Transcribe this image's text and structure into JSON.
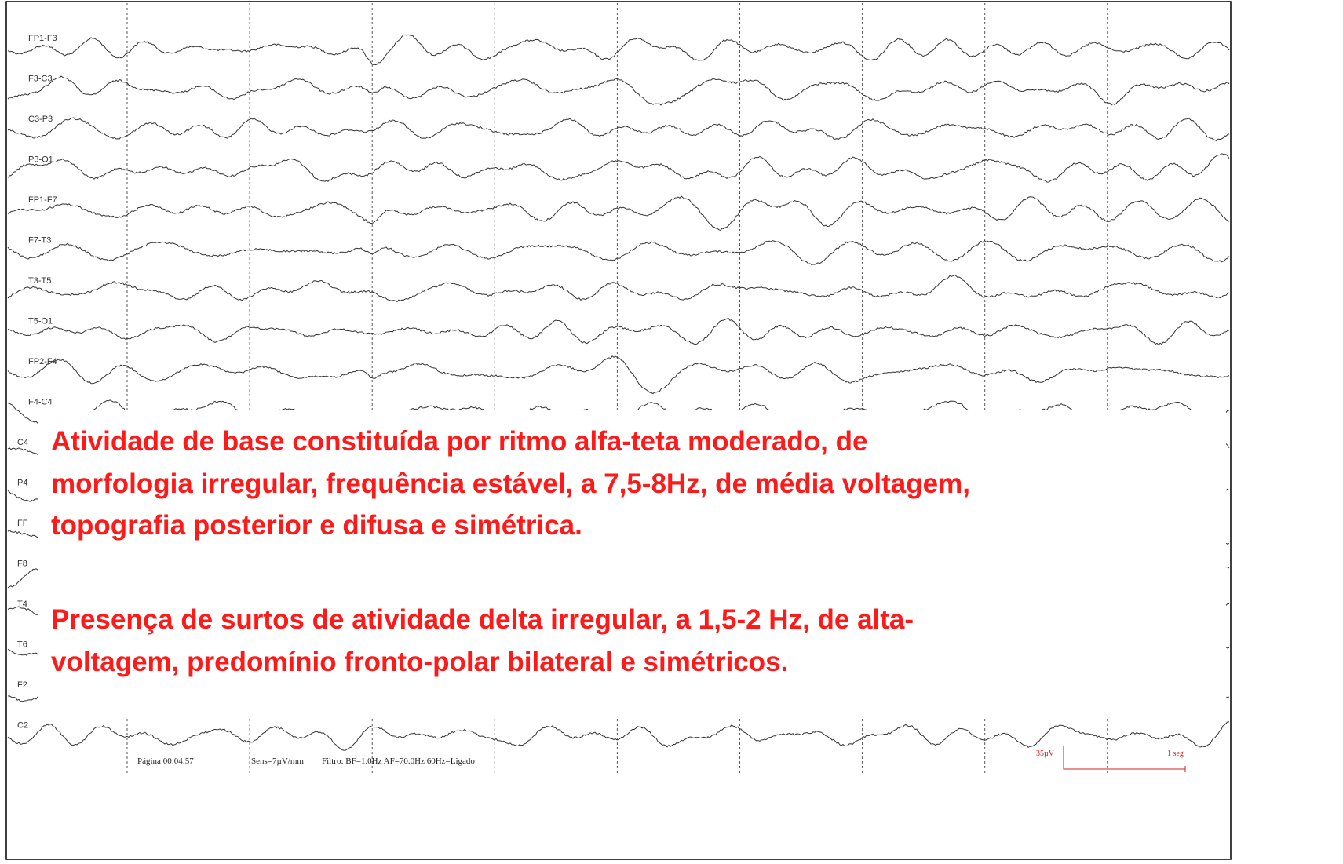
{
  "eeg": {
    "channels": [
      "FP1-F3",
      "F3-C3",
      "C3-P3",
      "P3-O1",
      "FP1-F7",
      "F7-T3",
      "T3-T5",
      "T5-O1",
      "FP2-F4",
      "F4-C4"
    ],
    "hidden_channels": [
      "C4",
      "P4",
      "FF",
      "F8",
      "T4",
      "T6",
      "F2",
      "C2"
    ],
    "footer": {
      "page": "Página 00:04:57",
      "sens": "Sens=7µV/mm",
      "filter": "Filtro: BF=1.0Hz AF=70.0Hz 60Hz=Ligado"
    },
    "scale": {
      "amplitude": "35µV",
      "time": "1 seg"
    }
  },
  "overlay": {
    "paragraph1": [
      "Atividade de base constituída por ritmo alfa-teta moderado, de",
      "morfologia irregular, frequência estável, a 7,5-8Hz, de média voltagem,",
      "topografia posterior e difusa e simétrica."
    ],
    "paragraph2": [
      "Presença de surtos de atividade delta irregular, a 1,5-2 Hz, de alta-",
      "voltagem, predomínio fronto-polar bilateral e simétricos."
    ]
  }
}
